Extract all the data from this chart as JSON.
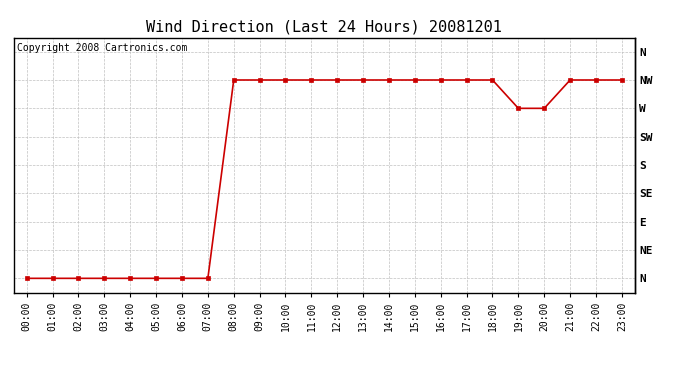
{
  "title": "Wind Direction (Last 24 Hours) 20081201",
  "copyright": "Copyright 2008 Cartronics.com",
  "x_labels": [
    "00:00",
    "01:00",
    "02:00",
    "03:00",
    "04:00",
    "05:00",
    "06:00",
    "07:00",
    "08:00",
    "09:00",
    "10:00",
    "11:00",
    "12:00",
    "13:00",
    "14:00",
    "15:00",
    "16:00",
    "17:00",
    "18:00",
    "19:00",
    "20:00",
    "21:00",
    "22:00",
    "23:00"
  ],
  "y_ticks": [
    0,
    1,
    2,
    3,
    4,
    5,
    6,
    7,
    8
  ],
  "y_labels": [
    "N",
    "NE",
    "E",
    "SE",
    "S",
    "SW",
    "W",
    "NW",
    "N"
  ],
  "wind_data": [
    0,
    0,
    0,
    0,
    0,
    0,
    0,
    0,
    7,
    7,
    7,
    7,
    7,
    7,
    7,
    7,
    7,
    7,
    7,
    6,
    6,
    7,
    7,
    7
  ],
  "line_color": "#cc0000",
  "marker": "s",
  "marker_size": 3,
  "background_color": "#ffffff",
  "grid_color": "#c0c0c0",
  "title_fontsize": 11,
  "copyright_fontsize": 7,
  "tick_fontsize": 7,
  "ylabel_fontsize": 8
}
